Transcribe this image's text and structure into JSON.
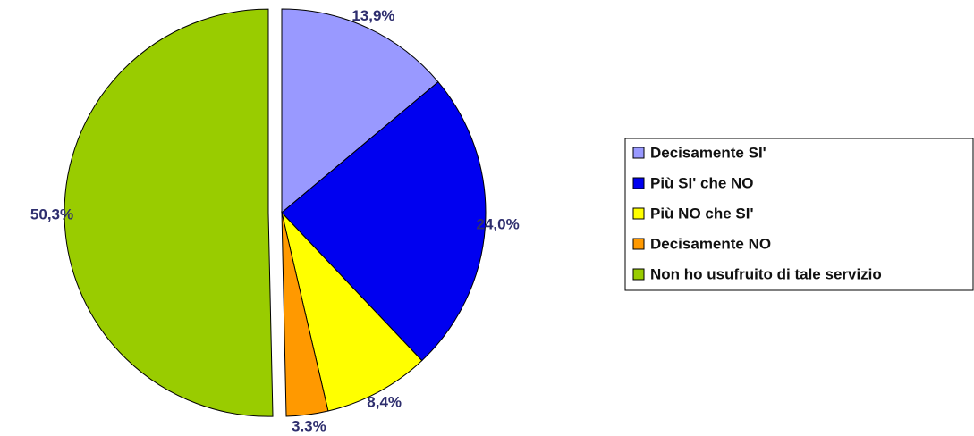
{
  "chart_data": {
    "type": "pie",
    "categories": [
      "Decisamente SI'",
      "Più SI' che NO",
      "Più NO che SI'",
      "Decisamente NO",
      "Non ho usufruito di tale servizio"
    ],
    "values": [
      13.9,
      24.0,
      8.4,
      3.3,
      50.3
    ],
    "value_labels": [
      "13,9%",
      "24,0%",
      "8,4%",
      "3.3%",
      "50,3%"
    ],
    "colors": [
      "#9999ff",
      "#0000f0",
      "#ffff00",
      "#ff9900",
      "#99cc00"
    ],
    "legend": "right"
  }
}
